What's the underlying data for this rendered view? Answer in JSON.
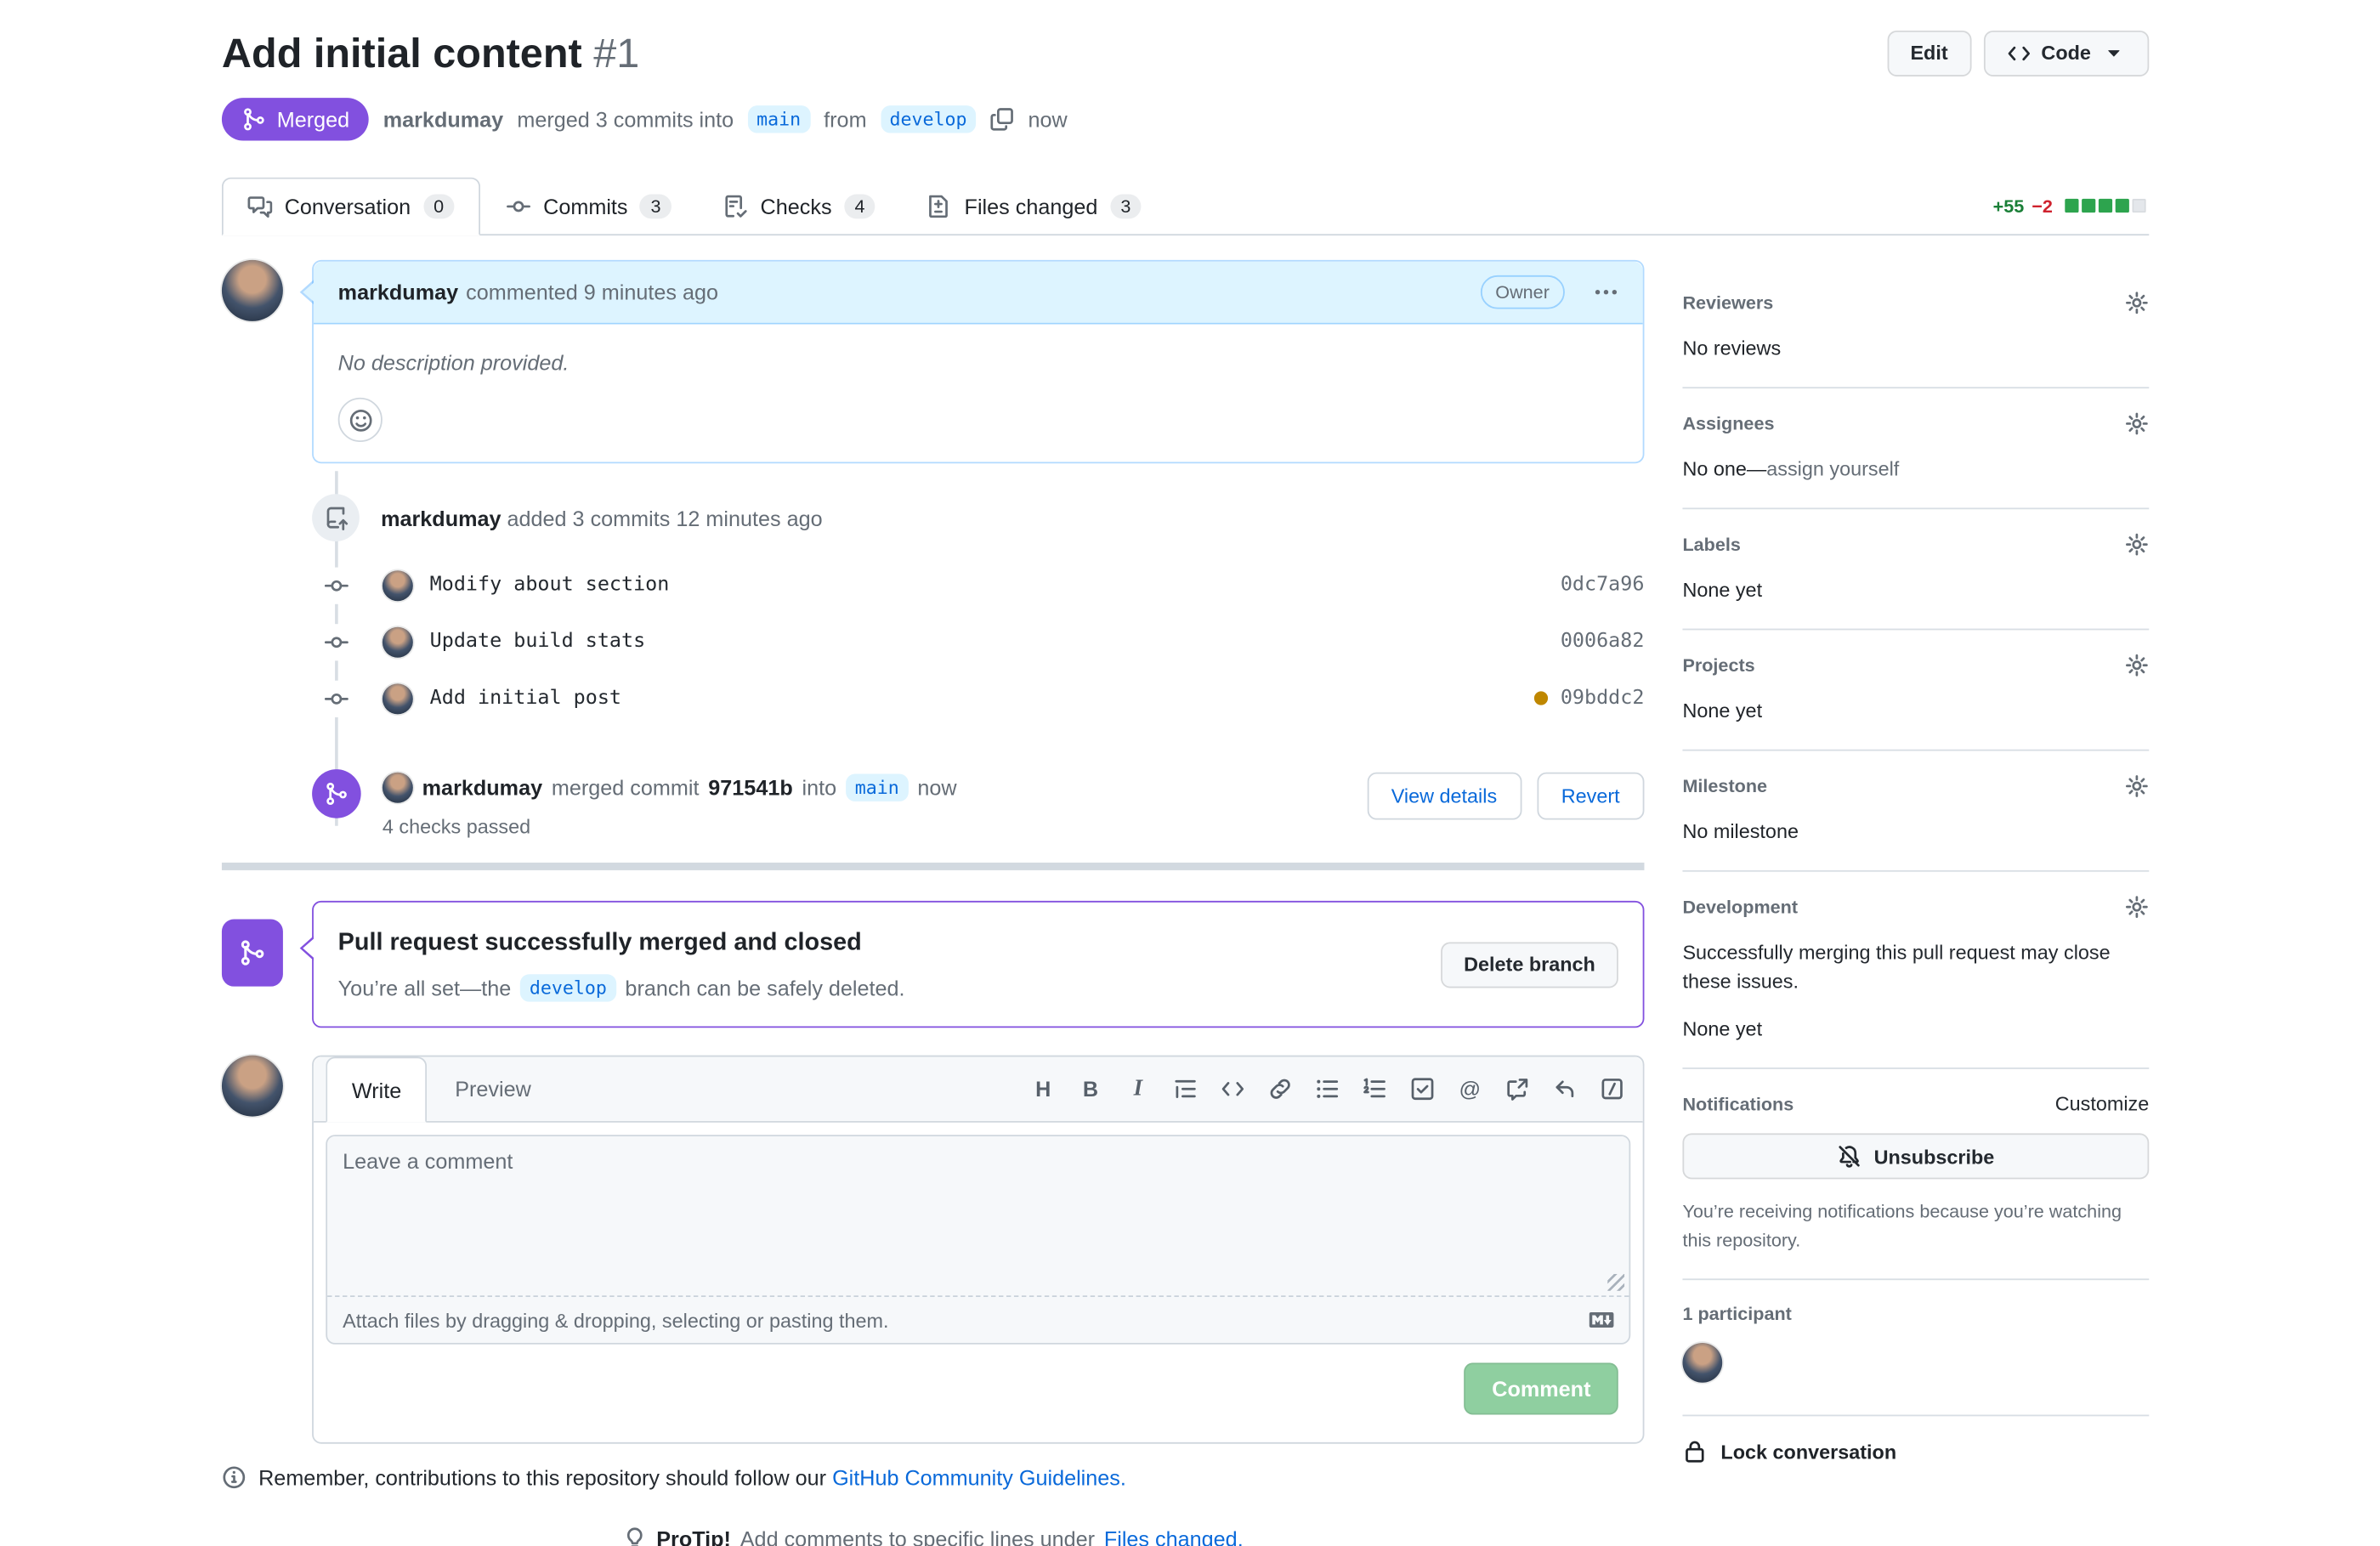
{
  "colors": {
    "merged_purple": "#8250df",
    "branch_text": "#0969da",
    "branch_bg": "#ddf4ff",
    "additions_green": "#1a7f37",
    "deletions_red": "#cf222e",
    "diff_block_green": "#2da44e",
    "pending_dot": "#bf8700",
    "comment_header_bg": "#ddf4ff"
  },
  "header": {
    "title": "Add initial content",
    "number": "#1",
    "edit_label": "Edit",
    "code_label": "Code",
    "status_badge": "Merged",
    "author": "markdumay",
    "action_text": "merged 3 commits into",
    "base_branch": "main",
    "from_word": "from",
    "head_branch": "develop",
    "time": "now"
  },
  "tabs": [
    {
      "label": "Conversation",
      "count": "0",
      "icon": "comment-discussion-icon"
    },
    {
      "label": "Commits",
      "count": "3",
      "icon": "git-commit-icon"
    },
    {
      "label": "Checks",
      "count": "4",
      "icon": "checklist-icon"
    },
    {
      "label": "Files changed",
      "count": "3",
      "icon": "file-diff-icon"
    }
  ],
  "diffstat": {
    "additions": "+55",
    "deletions": "−2",
    "blocks_filled": 4,
    "blocks_total": 5
  },
  "timeline": {
    "comment": {
      "author": "markdumay",
      "meta": "commented 9 minutes ago",
      "badge": "Owner",
      "body": "No description provided."
    },
    "push_event": {
      "author": "markdumay",
      "text": "added 3 commits 12 minutes ago"
    },
    "commits": [
      {
        "message": "Modify about section",
        "sha": "0dc7a96",
        "status_dot": false
      },
      {
        "message": "Update build stats",
        "sha": "0006a82",
        "status_dot": false
      },
      {
        "message": "Add initial post",
        "sha": "09bddc2",
        "status_dot": true
      }
    ],
    "merge_event": {
      "author": "markdumay",
      "action": "merged commit",
      "sha": "971541b",
      "into_word": "into",
      "branch": "main",
      "time": "now",
      "checks": "4 checks passed",
      "view_details_label": "View details",
      "revert_label": "Revert"
    },
    "merged_box": {
      "title": "Pull request successfully merged and closed",
      "subtitle_pre": "You’re all set—the",
      "branch": "develop",
      "subtitle_post": "branch can be safely deleted.",
      "button_label": "Delete branch"
    }
  },
  "comment_form": {
    "write_tab": "Write",
    "preview_tab": "Preview",
    "placeholder": "Leave a comment",
    "attach_text": "Attach files by dragging & dropping, selecting or pasting them.",
    "submit_label": "Comment"
  },
  "footer": {
    "guidelines_pre": "Remember, contributions to this repository should follow our",
    "guidelines_link": "GitHub Community Guidelines.",
    "protip_bold": "ProTip!",
    "protip_text": "Add comments to specific lines under",
    "protip_link": "Files changed."
  },
  "sidebar": {
    "reviewers": {
      "title": "Reviewers",
      "body": "No reviews"
    },
    "assignees": {
      "title": "Assignees",
      "body": "No one—",
      "link": "assign yourself"
    },
    "labels": {
      "title": "Labels",
      "body": "None yet"
    },
    "projects": {
      "title": "Projects",
      "body": "None yet"
    },
    "milestone": {
      "title": "Milestone",
      "body": "No milestone"
    },
    "development": {
      "title": "Development",
      "desc": "Successfully merging this pull request may close these issues.",
      "body": "None yet"
    },
    "notifications": {
      "title": "Notifications",
      "customize": "Customize",
      "button_label": "Unsubscribe",
      "caption": "You’re receiving notifications because you’re watching this repository."
    },
    "participants": {
      "title": "1 participant"
    },
    "lock_label": "Lock conversation"
  }
}
